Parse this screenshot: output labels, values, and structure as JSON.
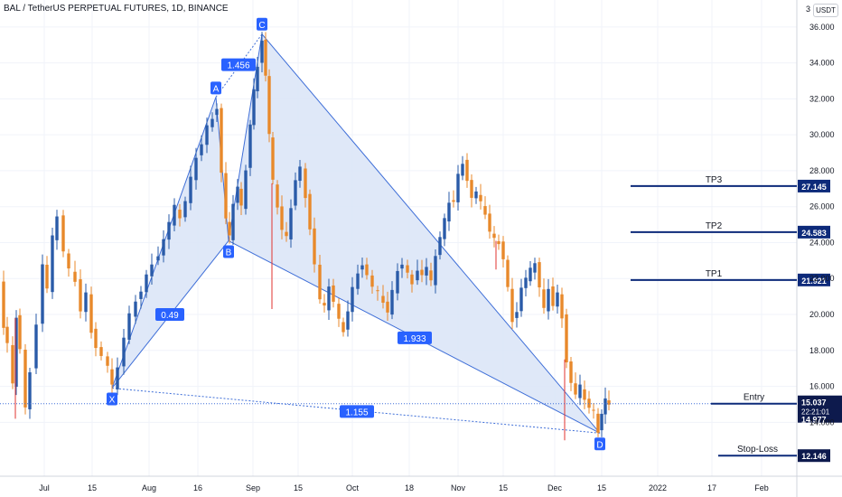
{
  "header": {
    "title": "BAL / TetherUS PERPETUAL FUTURES, 1D, BINANCE",
    "currency_badge": "USDT",
    "axis_cut_label": "3"
  },
  "colors": {
    "bull": "#2a5ba8",
    "bear": "#e8892b",
    "pattern_fill": "#dbe5f7",
    "pattern_line": "#3f6fd8",
    "level_line": "#0d2a7a",
    "label_bg": "#2962ff",
    "dark_label_bg": "#0d1a4d",
    "axis_text": "#131722",
    "grid": "#f0f3fa"
  },
  "chart_data": {
    "type": "candlestick",
    "symbol": "BAL / TetherUS PERPETUAL FUTURES",
    "interval": "1D",
    "exchange": "BINANCE",
    "y_axis": {
      "range": [
        11.0,
        37.5
      ],
      "ticks": [
        "36.000",
        "34.000",
        "32.000",
        "30.000",
        "28.000",
        "26.000",
        "24.000",
        "22.000",
        "20.000",
        "18.000",
        "16.000",
        "14.000"
      ]
    },
    "x_axis": {
      "tick_labels": [
        "Jul",
        "15",
        "Aug",
        "16",
        "Sep",
        "15",
        "Oct",
        "18",
        "Nov",
        "15",
        "Dec",
        "15",
        "2022",
        "17",
        "Feb"
      ]
    },
    "price_path": [
      [
        0,
        21.9
      ],
      [
        4,
        19.2
      ],
      [
        8,
        18.5
      ],
      [
        14,
        16.0
      ],
      [
        18,
        19.8
      ],
      [
        22,
        18.2
      ],
      [
        28,
        14.7
      ],
      [
        33,
        16.8
      ],
      [
        40,
        19.6
      ],
      [
        47,
        22.7
      ],
      [
        52,
        21.5
      ],
      [
        58,
        24.2
      ],
      [
        63,
        25.4
      ],
      [
        70,
        23.6
      ],
      [
        76,
        22.4
      ],
      [
        83,
        21.8
      ],
      [
        89,
        20.3
      ],
      [
        95,
        21.1
      ],
      [
        101,
        19.0
      ],
      [
        106,
        18.3
      ],
      [
        112,
        17.6
      ],
      [
        119,
        17.2
      ],
      [
        124,
        15.9
      ],
      [
        130,
        17.0
      ],
      [
        137,
        18.8
      ],
      [
        143,
        19.9
      ],
      [
        150,
        20.7
      ],
      [
        156,
        21.4
      ],
      [
        162,
        22.1
      ],
      [
        168,
        22.8
      ],
      [
        175,
        23.4
      ],
      [
        181,
        24.1
      ],
      [
        187,
        25.2
      ],
      [
        193,
        25.9
      ],
      [
        199,
        25.3
      ],
      [
        205,
        26.4
      ],
      [
        211,
        27.5
      ],
      [
        217,
        28.7
      ],
      [
        223,
        29.6
      ],
      [
        229,
        30.4
      ],
      [
        235,
        30.9
      ],
      [
        240,
        31.6
      ],
      [
        245,
        27.8
      ],
      [
        250,
        25.4
      ],
      [
        254,
        24.2
      ],
      [
        258,
        26.1
      ],
      [
        263,
        27.2
      ],
      [
        267,
        25.9
      ],
      [
        272,
        28.0
      ],
      [
        277,
        30.7
      ],
      [
        281,
        32.4
      ],
      [
        285,
        33.8
      ],
      [
        290,
        35.4
      ],
      [
        294,
        33.2
      ],
      [
        298,
        30.1
      ],
      [
        302,
        27.3
      ],
      [
        307,
        25.9
      ],
      [
        312,
        24.8
      ],
      [
        317,
        24.2
      ],
      [
        322,
        25.9
      ],
      [
        327,
        27.6
      ],
      [
        332,
        28.1
      ],
      [
        338,
        26.5
      ],
      [
        343,
        24.9
      ],
      [
        348,
        22.7
      ],
      [
        354,
        20.9
      ],
      [
        359,
        20.3
      ],
      [
        364,
        21.5
      ],
      [
        369,
        20.8
      ],
      [
        375,
        19.6
      ],
      [
        380,
        19.0
      ],
      [
        385,
        20.3
      ],
      [
        390,
        21.4
      ],
      [
        396,
        22.3
      ],
      [
        401,
        22.9
      ],
      [
        406,
        22.1
      ],
      [
        412,
        21.6
      ],
      [
        418,
        21.1
      ],
      [
        424,
        20.6
      ],
      [
        429,
        20.2
      ],
      [
        434,
        21.2
      ],
      [
        440,
        22.4
      ],
      [
        445,
        22.9
      ],
      [
        451,
        22.2
      ],
      [
        456,
        21.7
      ],
      [
        462,
        22.6
      ],
      [
        467,
        22.1
      ],
      [
        472,
        22.7
      ],
      [
        477,
        21.7
      ],
      [
        482,
        23.2
      ],
      [
        487,
        24.4
      ],
      [
        492,
        25.2
      ],
      [
        497,
        26.2
      ],
      [
        502,
        26.4
      ],
      [
        507,
        27.7
      ],
      [
        512,
        28.4
      ],
      [
        517,
        27.6
      ],
      [
        522,
        26.4
      ],
      [
        527,
        26.9
      ],
      [
        532,
        26.1
      ],
      [
        537,
        25.5
      ],
      [
        542,
        24.7
      ],
      [
        547,
        24.1
      ],
      [
        552,
        23.9
      ],
      [
        557,
        23.2
      ],
      [
        562,
        21.4
      ],
      [
        567,
        19.6
      ],
      [
        572,
        20.3
      ],
      [
        577,
        21.4
      ],
      [
        582,
        22.1
      ],
      [
        587,
        22.4
      ],
      [
        592,
        22.8
      ],
      [
        597,
        21.6
      ],
      [
        602,
        20.2
      ],
      [
        607,
        21.4
      ],
      [
        612,
        20.6
      ],
      [
        617,
        21.1
      ],
      [
        622,
        19.8
      ],
      [
        627,
        17.5
      ],
      [
        632,
        16.1
      ],
      [
        637,
        15.6
      ],
      [
        642,
        15.9
      ],
      [
        647,
        15.2
      ],
      [
        652,
        14.9
      ],
      [
        657,
        14.5
      ],
      [
        662,
        13.4
      ],
      [
        666,
        14.6
      ],
      [
        670,
        15.2
      ],
      [
        674,
        15.0
      ]
    ],
    "wick_highlights": [
      {
        "x": 301,
        "low": 20.3
      },
      {
        "x": 625,
        "low": 13.0
      },
      {
        "x": 549,
        "low": 22.5
      },
      {
        "x": 17,
        "low": 14.2
      }
    ],
    "pattern": {
      "points": {
        "X": {
          "x": 124,
          "y": 15.9
        },
        "A": {
          "x": 239,
          "y": 32.1
        },
        "B": {
          "x": 253,
          "y": 24.1
        },
        "C": {
          "x": 290,
          "y": 35.6
        },
        "D": {
          "x": 664,
          "y": 13.4
        }
      },
      "ratios": {
        "XB": "0.49",
        "AC": "1.456",
        "BD": "1.933",
        "XD": "1.155"
      }
    },
    "levels": [
      {
        "name": "TP3",
        "price": "27.145",
        "value": 27.145,
        "x_start": 698,
        "style": "blue"
      },
      {
        "name": "TP2",
        "price": "24.583",
        "value": 24.583,
        "x_start": 698,
        "style": "blue"
      },
      {
        "name": "TP1",
        "price": "21.921",
        "value": 21.921,
        "x_start": 698,
        "style": "blue"
      },
      {
        "name": "Entry",
        "price": "15.037",
        "value": 15.037,
        "x_start": 787,
        "style": "dark"
      },
      {
        "name": "Stop-Loss",
        "price": "12.146",
        "value": 12.146,
        "x_start": 795,
        "style": "dark"
      }
    ],
    "current_price": {
      "price": "15.037",
      "countdown": "22:21:01",
      "last": "14.977",
      "value": 15.037
    }
  }
}
